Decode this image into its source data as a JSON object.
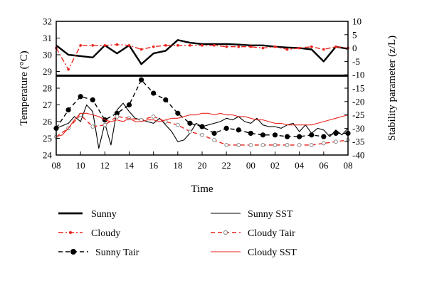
{
  "chart_data": {
    "type": "line",
    "xlabel": "Time",
    "ylabel_left": "Temperature (°C)",
    "ylabel_right": "Stability parameter (z/L)",
    "x_ticks": [
      "08",
      "10",
      "12",
      "14",
      "16",
      "18",
      "20",
      "22",
      "00",
      "02",
      "04",
      "06",
      "08"
    ],
    "y_left_ticks": [
      "24",
      "25",
      "26",
      "27",
      "28",
      "29",
      "30",
      "31",
      "32"
    ],
    "y_right_ticks": [
      "10",
      "5",
      "0",
      "-5",
      "-10",
      "-15",
      "-20",
      "-25",
      "-30",
      "-35",
      "-40"
    ],
    "ylim_left": [
      24,
      32
    ],
    "ylim_right": [
      -40,
      10
    ],
    "xlim_hours": [
      0,
      24
    ],
    "grid": false,
    "legend_position": "bottom",
    "separator_line_temperature": 28.75,
    "colors": {
      "black": "#000000",
      "red": "#e8231c"
    },
    "series": [
      {
        "name": "Sunny",
        "axis": "right",
        "style": "thick-line",
        "color": "#000000",
        "x": [
          0,
          1,
          3,
          4,
          5,
          6,
          7,
          8,
          9,
          10,
          11,
          12,
          13,
          14,
          15,
          16,
          17,
          18,
          19,
          20,
          21,
          22,
          23,
          24
        ],
        "y": [
          1,
          -2.5,
          -3.5,
          1,
          -2,
          1,
          -6,
          -2,
          -1,
          3,
          2,
          1.5,
          1.5,
          1.5,
          1.3,
          1,
          1,
          0.5,
          0.2,
          0,
          -0.5,
          -5,
          0.5,
          -0.3
        ]
      },
      {
        "name": "Cloudy",
        "axis": "right",
        "style": "dash-dot-line",
        "color": "#e8231c",
        "x": [
          0,
          1,
          2,
          3,
          4,
          5,
          6,
          7,
          8,
          9,
          10,
          11,
          12,
          13,
          14,
          15,
          16,
          17,
          18,
          19,
          20,
          21,
          22,
          23,
          24
        ],
        "y": [
          0,
          -8,
          1,
          1,
          1,
          1.3,
          1,
          -0.5,
          0.5,
          1,
          1,
          1,
          1,
          1,
          0.5,
          0.5,
          0.5,
          0,
          0.5,
          -0.5,
          0,
          0.5,
          -0.5,
          0.5,
          0
        ]
      },
      {
        "name": "Sunny Tair",
        "axis": "left",
        "style": "dashed-filled-circles",
        "color": "#000000",
        "x": [
          0,
          1,
          2,
          3,
          4,
          5,
          6,
          7,
          8,
          9,
          10,
          11,
          12,
          13,
          14,
          15,
          16,
          17,
          18,
          19,
          20,
          21,
          22,
          23,
          24
        ],
        "y": [
          25.6,
          26.7,
          27.5,
          27.3,
          26.1,
          26.5,
          27.0,
          28.5,
          27.7,
          27.3,
          26.5,
          25.9,
          25.7,
          25.3,
          25.6,
          25.5,
          25.3,
          25.2,
          25.2,
          25.1,
          25.1,
          25.2,
          25.1,
          25.3,
          25.3
        ]
      },
      {
        "name": "Sunny SST",
        "axis": "left",
        "style": "thin-line",
        "color": "#000000",
        "x": [
          0,
          1,
          1.5,
          2,
          2.5,
          3,
          3.5,
          4,
          4.5,
          5,
          5.5,
          6,
          6.5,
          7,
          7.5,
          8,
          8.5,
          9,
          9.5,
          10,
          10.5,
          11,
          11.5,
          12,
          12.5,
          13,
          13.5,
          14,
          14.5,
          15,
          15.5,
          16,
          16.5,
          17,
          17.5,
          18,
          18.5,
          19,
          19.5,
          20,
          20.5,
          21,
          21.5,
          22,
          22.5,
          23,
          23.5,
          24
        ],
        "y": [
          25.6,
          25.9,
          26.3,
          26.0,
          27.0,
          26.6,
          24.4,
          25.9,
          24.6,
          26.7,
          27.1,
          26.6,
          26.2,
          26.1,
          26.0,
          25.9,
          26.2,
          25.8,
          25.4,
          24.8,
          24.9,
          25.3,
          25.9,
          25.7,
          25.8,
          25.9,
          26.0,
          26.2,
          26.1,
          26.3,
          26.0,
          25.9,
          26.2,
          25.8,
          25.7,
          25.7,
          25.6,
          25.8,
          25.9,
          25.4,
          25.8,
          25.3,
          25.6,
          25.5,
          25.1,
          25.5,
          25.2,
          25.6
        ]
      },
      {
        "name": "Cloudy Tair",
        "axis": "left",
        "style": "dashed-open-circles",
        "color": "#e8231c",
        "x": [
          0,
          1,
          2,
          3,
          4,
          5,
          6,
          7,
          8,
          9,
          10,
          11,
          12,
          13,
          14,
          15,
          16,
          17,
          18,
          19,
          20,
          21,
          22,
          23,
          24
        ],
        "y": [
          25.1,
          25.6,
          26.4,
          25.7,
          25.8,
          26.3,
          26.2,
          26.1,
          26.3,
          26.0,
          25.8,
          25.4,
          25.2,
          24.9,
          24.6,
          24.6,
          24.6,
          24.6,
          24.6,
          24.6,
          24.6,
          24.6,
          24.7,
          24.8,
          24.9
        ]
      },
      {
        "name": "Cloudy SST",
        "axis": "left",
        "style": "thin-line",
        "color": "#e8231c",
        "x": [
          0,
          0.5,
          1,
          1.5,
          2,
          2.5,
          3,
          3.5,
          4,
          4.5,
          5,
          5.5,
          6,
          6.5,
          7,
          7.5,
          8,
          8.5,
          9,
          9.5,
          10,
          10.5,
          11,
          11.5,
          12,
          12.5,
          13,
          13.5,
          14,
          14.5,
          15,
          15.5,
          16,
          16.5,
          17,
          17.5,
          18,
          18.5,
          19,
          19.5,
          20,
          20.5,
          21,
          21.5,
          22,
          22.5,
          23,
          23.5,
          24
        ],
        "y": [
          25.1,
          25.2,
          25.6,
          26.1,
          26.5,
          26.5,
          26.4,
          26.3,
          26.1,
          26.0,
          26.1,
          26.0,
          26.2,
          26.0,
          26.0,
          26.1,
          26.1,
          26.0,
          26.1,
          26.2,
          26.2,
          26.3,
          26.4,
          26.4,
          26.5,
          26.5,
          26.4,
          26.5,
          26.4,
          26.4,
          26.3,
          26.3,
          26.2,
          26.1,
          26.1,
          26.0,
          25.9,
          25.9,
          25.8,
          25.8,
          25.8,
          25.8,
          25.8,
          25.9,
          26.0,
          26.1,
          26.2,
          26.3,
          26.4
        ]
      }
    ]
  }
}
